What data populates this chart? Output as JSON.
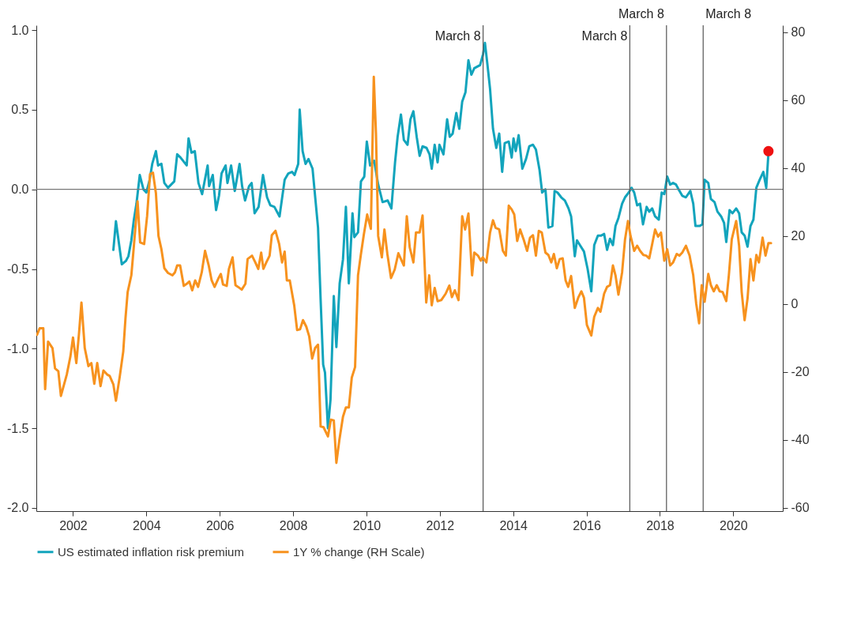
{
  "chart_data": {
    "type": "line",
    "legend": "bottom",
    "line_style": "solid",
    "xlim": [
      2001.0,
      2021.35
    ],
    "xticks": [
      2002,
      2004,
      2006,
      2008,
      2010,
      2012,
      2014,
      2016,
      2018,
      2020
    ],
    "ylim": [
      -2.02,
      1.03
    ],
    "yticks": [
      {
        "value": -2,
        "label": "-2.0"
      },
      -1.5,
      {
        "value": -1,
        "label": "-1.0"
      },
      -0.5,
      {
        "value": 0,
        "label": "0.0"
      },
      0.5,
      {
        "value": 1,
        "label": "1.0"
      }
    ],
    "y2lim": [
      -61,
      82
    ],
    "y2ticks": [
      -60,
      -40,
      -20,
      0,
      20,
      40,
      60,
      80
    ],
    "ref_lines": [
      {
        "axis": "y",
        "value": 0,
        "color": "#777777"
      },
      {
        "axis": "x",
        "value": 2013.18,
        "label": "March 8",
        "color": "#555555"
      },
      {
        "axis": "x",
        "value": 2017.18,
        "label": "March 8",
        "color": "#555555"
      },
      {
        "axis": "x",
        "value": 2018.18,
        "label": "March 8",
        "color": "#555555"
      },
      {
        "axis": "x",
        "value": 2019.18,
        "label": "March 8",
        "color": "#555555"
      }
    ],
    "series": [
      {
        "name": "US estimated inflation risk premium",
        "color": "#12a4bc",
        "x": [
          2003.1,
          2003.17,
          2003.33,
          2003.44,
          2003.51,
          2003.59,
          2003.66,
          2003.73,
          2003.82,
          2003.92,
          2004.0,
          2004.09,
          2004.16,
          2004.26,
          2004.32,
          2004.41,
          2004.49,
          2004.59,
          2004.76,
          2004.84,
          2004.93,
          2005.1,
          2005.15,
          2005.23,
          2005.32,
          2005.42,
          2005.52,
          2005.67,
          2005.71,
          2005.81,
          2005.9,
          2005.98,
          2006.05,
          2006.16,
          2006.21,
          2006.31,
          2006.41,
          2006.54,
          2006.61,
          2006.69,
          2006.8,
          2006.87,
          2006.95,
          2007.06,
          2007.18,
          2007.29,
          2007.38,
          2007.49,
          2007.63,
          2007.77,
          2007.87,
          2007.97,
          2008.04,
          2008.14,
          2008.18,
          2008.26,
          2008.34,
          2008.42,
          2008.53,
          2008.68,
          2008.75,
          2008.82,
          2008.87,
          2008.95,
          2009.02,
          2009.11,
          2009.18,
          2009.27,
          2009.36,
          2009.44,
          2009.52,
          2009.62,
          2009.67,
          2009.77,
          2009.85,
          2009.94,
          2010.01,
          2010.1,
          2010.21,
          2010.32,
          2010.44,
          2010.58,
          2010.68,
          2010.78,
          2010.85,
          2010.94,
          2011.02,
          2011.12,
          2011.2,
          2011.28,
          2011.37,
          2011.45,
          2011.53,
          2011.64,
          2011.72,
          2011.78,
          2011.86,
          2011.94,
          2011.99,
          2012.1,
          2012.2,
          2012.27,
          2012.35,
          2012.45,
          2012.53,
          2012.61,
          2012.7,
          2012.78,
          2012.86,
          2012.94,
          2013.1,
          2013.18,
          2013.23,
          2013.3,
          2013.37,
          2013.45,
          2013.54,
          2013.62,
          2013.7,
          2013.77,
          2013.88,
          2013.96,
          2014.01,
          2014.07,
          2014.15,
          2014.25,
          2014.35,
          2014.44,
          2014.54,
          2014.62,
          2014.72,
          2014.79,
          2014.88,
          2014.96,
          2015.07,
          2015.13,
          2015.21,
          2015.31,
          2015.41,
          2015.51,
          2015.58,
          2015.68,
          2015.74,
          2015.82,
          2015.93,
          2016.03,
          2016.13,
          2016.21,
          2016.31,
          2016.4,
          2016.48,
          2016.56,
          2016.64,
          2016.72,
          2016.79,
          2016.87,
          2016.97,
          2017.05,
          2017.15,
          2017.23,
          2017.3,
          2017.38,
          2017.46,
          2017.54,
          2017.64,
          2017.71,
          2017.79,
          2017.87,
          2017.97,
          2018.05,
          2018.12,
          2018.2,
          2018.28,
          2018.36,
          2018.44,
          2018.51,
          2018.61,
          2018.71,
          2018.83,
          2018.91,
          2018.97,
          2019.08,
          2019.16,
          2019.22,
          2019.32,
          2019.39,
          2019.49,
          2019.57,
          2019.67,
          2019.75,
          2019.81,
          2019.9,
          2019.98,
          2020.08,
          2020.16,
          2020.23,
          2020.31,
          2020.39,
          2020.47,
          2020.55,
          2020.63,
          2020.72,
          2020.82,
          2020.9,
          2020.96
        ],
        "values": [
          -0.38,
          -0.2,
          -0.47,
          -0.45,
          -0.42,
          -0.32,
          -0.19,
          -0.09,
          0.09,
          0.0,
          -0.02,
          0.06,
          0.16,
          0.24,
          0.15,
          0.16,
          0.04,
          0.01,
          0.05,
          0.22,
          0.2,
          0.15,
          0.32,
          0.23,
          0.24,
          0.04,
          -0.03,
          0.15,
          0.02,
          0.09,
          -0.13,
          -0.04,
          0.1,
          0.15,
          0.04,
          0.15,
          -0.01,
          0.16,
          0.02,
          -0.07,
          0.02,
          0.04,
          -0.15,
          -0.11,
          0.09,
          -0.05,
          -0.1,
          -0.11,
          -0.17,
          0.06,
          0.1,
          0.11,
          0.09,
          0.16,
          0.5,
          0.24,
          0.16,
          0.19,
          0.13,
          -0.24,
          -0.69,
          -1.1,
          -1.15,
          -1.5,
          -1.32,
          -0.67,
          -0.99,
          -0.59,
          -0.44,
          -0.11,
          -0.59,
          -0.15,
          -0.3,
          -0.27,
          0.05,
          0.08,
          0.3,
          0.15,
          0.18,
          0.03,
          -0.08,
          -0.07,
          -0.12,
          0.17,
          0.33,
          0.47,
          0.31,
          0.28,
          0.44,
          0.49,
          0.33,
          0.21,
          0.27,
          0.26,
          0.22,
          0.13,
          0.28,
          0.17,
          0.28,
          0.22,
          0.44,
          0.33,
          0.35,
          0.48,
          0.38,
          0.55,
          0.61,
          0.81,
          0.72,
          0.76,
          0.78,
          0.85,
          0.92,
          0.78,
          0.63,
          0.38,
          0.26,
          0.35,
          0.11,
          0.29,
          0.3,
          0.2,
          0.32,
          0.24,
          0.34,
          0.13,
          0.19,
          0.27,
          0.28,
          0.25,
          0.12,
          -0.02,
          0.0,
          -0.24,
          -0.23,
          -0.01,
          -0.02,
          -0.05,
          -0.07,
          -0.12,
          -0.17,
          -0.42,
          -0.32,
          -0.35,
          -0.39,
          -0.5,
          -0.64,
          -0.35,
          -0.29,
          -0.29,
          -0.28,
          -0.38,
          -0.31,
          -0.35,
          -0.23,
          -0.18,
          -0.09,
          -0.05,
          -0.02,
          0.01,
          -0.02,
          -0.1,
          -0.09,
          -0.22,
          -0.11,
          -0.14,
          -0.12,
          -0.17,
          -0.19,
          -0.02,
          -0.03,
          0.08,
          0.03,
          0.04,
          0.03,
          0.0,
          -0.04,
          -0.05,
          -0.01,
          -0.09,
          -0.23,
          -0.23,
          -0.22,
          0.06,
          0.04,
          -0.06,
          -0.08,
          -0.14,
          -0.17,
          -0.21,
          -0.33,
          -0.13,
          -0.15,
          -0.12,
          -0.15,
          -0.27,
          -0.29,
          -0.36,
          -0.23,
          -0.19,
          0.01,
          0.06,
          0.11,
          0.01,
          0.23
        ]
      },
      {
        "type": "scatter",
        "color": "#ee1111",
        "x": [
          2020.96
        ],
        "values": [
          0.24
        ]
      },
      {
        "name": "1Y % change (RH Scale)",
        "color": "#f7921e",
        "axis": "y2",
        "x": [
          2001.02,
          2001.09,
          2001.19,
          2001.24,
          2001.32,
          2001.44,
          2001.51,
          2001.6,
          2001.67,
          2001.83,
          2001.93,
          2002.0,
          2002.09,
          2002.16,
          2002.23,
          2002.32,
          2002.42,
          2002.5,
          2002.58,
          2002.66,
          2002.75,
          2002.83,
          2002.93,
          2003.0,
          2003.1,
          2003.17,
          2003.27,
          2003.37,
          2003.43,
          2003.49,
          2003.59,
          2003.66,
          2003.76,
          2003.83,
          2003.94,
          2004.02,
          2004.1,
          2004.18,
          2004.26,
          2004.33,
          2004.41,
          2004.49,
          2004.59,
          2004.71,
          2004.78,
          2004.84,
          2004.92,
          2005.02,
          2005.1,
          2005.17,
          2005.25,
          2005.33,
          2005.41,
          2005.51,
          2005.6,
          2005.7,
          2005.78,
          2005.86,
          2005.96,
          2006.03,
          2006.09,
          2006.19,
          2006.25,
          2006.35,
          2006.43,
          2006.5,
          2006.6,
          2006.7,
          2006.76,
          2006.88,
          2006.97,
          2007.05,
          2007.13,
          2007.19,
          2007.27,
          2007.36,
          2007.42,
          2007.52,
          2007.62,
          2007.7,
          2007.77,
          2007.83,
          2007.91,
          2008.03,
          2008.11,
          2008.19,
          2008.27,
          2008.36,
          2008.44,
          2008.52,
          2008.6,
          2008.68,
          2008.75,
          2008.83,
          2008.95,
          2009.03,
          2009.11,
          2009.18,
          2009.26,
          2009.36,
          2009.44,
          2009.52,
          2009.6,
          2009.69,
          2009.77,
          2009.85,
          2009.93,
          2010.02,
          2010.12,
          2010.2,
          2010.26,
          2010.32,
          2010.42,
          2010.49,
          2010.57,
          2010.67,
          2010.77,
          2010.87,
          2010.94,
          2011.02,
          2011.1,
          2011.18,
          2011.28,
          2011.35,
          2011.45,
          2011.53,
          2011.63,
          2011.71,
          2011.78,
          2011.86,
          2011.94,
          2012.04,
          2012.16,
          2012.26,
          2012.33,
          2012.41,
          2012.51,
          2012.61,
          2012.69,
          2012.78,
          2012.88,
          2012.94,
          2013.04,
          2013.12,
          2013.17,
          2013.27,
          2013.37,
          2013.45,
          2013.52,
          2013.62,
          2013.72,
          2013.8,
          2013.88,
          2013.96,
          2014.03,
          2014.11,
          2014.19,
          2014.29,
          2014.38,
          2014.46,
          2014.54,
          2014.62,
          2014.7,
          2014.78,
          2014.88,
          2014.96,
          2015.04,
          2015.11,
          2015.19,
          2015.27,
          2015.35,
          2015.43,
          2015.5,
          2015.58,
          2015.68,
          2015.78,
          2015.86,
          2015.93,
          2016.01,
          2016.13,
          2016.21,
          2016.31,
          2016.38,
          2016.48,
          2016.56,
          2016.64,
          2016.72,
          2016.79,
          2016.87,
          2016.97,
          2017.05,
          2017.13,
          2017.2,
          2017.3,
          2017.38,
          2017.46,
          2017.55,
          2017.63,
          2017.71,
          2017.79,
          2017.87,
          2017.95,
          2018.03,
          2018.12,
          2018.2,
          2018.28,
          2018.36,
          2018.46,
          2018.53,
          2018.61,
          2018.71,
          2018.81,
          2018.91,
          2018.99,
          2019.07,
          2019.14,
          2019.22,
          2019.32,
          2019.39,
          2019.47,
          2019.55,
          2019.63,
          2019.71,
          2019.81,
          2019.88,
          2019.96,
          2020.08,
          2020.16,
          2020.23,
          2020.31,
          2020.39,
          2020.47,
          2020.55,
          2020.63,
          2020.7,
          2020.8,
          2020.88,
          2020.96,
          2021.03
        ],
        "values": [
          -9.1,
          -7.2,
          -7.2,
          -25.1,
          -11.1,
          -13.0,
          -19.0,
          -19.8,
          -27.1,
          -20.8,
          -15.4,
          -9.9,
          -17.4,
          -9.1,
          0.4,
          -13.0,
          -18.3,
          -17.4,
          -23.5,
          -17.4,
          -24.2,
          -19.6,
          -20.8,
          -21.2,
          -23.7,
          -28.5,
          -21.7,
          -14.0,
          -4.3,
          3.5,
          8.4,
          17.1,
          30.2,
          18.1,
          17.6,
          25.8,
          38.2,
          38.6,
          32.6,
          20.0,
          16.1,
          10.5,
          9.1,
          8.4,
          9.3,
          11.3,
          11.3,
          5.3,
          5.9,
          6.6,
          4.0,
          6.9,
          5.0,
          9.3,
          15.6,
          11.3,
          6.9,
          5.0,
          7.4,
          8.8,
          5.7,
          5.3,
          10.3,
          13.7,
          5.5,
          5.0,
          4.2,
          5.9,
          13.2,
          14.2,
          12.2,
          10.3,
          15.1,
          10.3,
          12.2,
          14.2,
          20.2,
          21.5,
          17.6,
          12.2,
          15.4,
          6.9,
          6.9,
          -0.4,
          -7.7,
          -7.5,
          -4.8,
          -6.7,
          -9.6,
          -16.1,
          -13.0,
          -12.0,
          -36.1,
          -36.3,
          -39.0,
          -34.1,
          -34.3,
          -46.8,
          -40.2,
          -33.2,
          -30.5,
          -30.5,
          -21.7,
          -18.6,
          8.4,
          14.7,
          20.5,
          26.3,
          22.1,
          66.8,
          50.1,
          20.0,
          13.7,
          21.9,
          14.7,
          7.6,
          10.1,
          14.9,
          13.2,
          11.3,
          25.8,
          16.6,
          12.2,
          21.0,
          21.0,
          26.0,
          0.4,
          8.4,
          -0.4,
          4.7,
          0.8,
          1.1,
          3.0,
          5.4,
          2.0,
          4.0,
          1.1,
          25.8,
          21.9,
          26.6,
          8.4,
          15.1,
          14.2,
          12.7,
          13.7,
          12.2,
          21.0,
          24.6,
          22.4,
          21.9,
          15.6,
          14.2,
          28.9,
          27.8,
          26.3,
          18.5,
          21.9,
          18.8,
          15.6,
          19.5,
          20.2,
          14.2,
          21.5,
          21.0,
          15.1,
          14.4,
          12.2,
          14.7,
          10.5,
          13.2,
          13.4,
          6.9,
          5.0,
          8.2,
          -1.2,
          2.0,
          3.7,
          1.8,
          -6.2,
          -9.3,
          -3.8,
          -1.2,
          -2.3,
          3.0,
          5.0,
          5.5,
          11.3,
          8.4,
          2.7,
          9.3,
          19.0,
          24.4,
          20.0,
          15.6,
          17.1,
          15.6,
          14.4,
          14.2,
          13.4,
          17.6,
          21.9,
          19.8,
          21.0,
          12.7,
          16.1,
          11.3,
          12.2,
          14.7,
          14.2,
          15.1,
          17.1,
          14.2,
          8.4,
          0.1,
          -5.7,
          5.5,
          0.6,
          8.8,
          5.5,
          3.7,
          5.5,
          3.7,
          3.5,
          0.8,
          8.4,
          19.0,
          24.4,
          17.1,
          3.5,
          -4.8,
          1.6,
          13.2,
          6.9,
          14.4,
          12.2,
          19.5,
          14.2,
          17.9,
          17.9
        ]
      }
    ]
  }
}
